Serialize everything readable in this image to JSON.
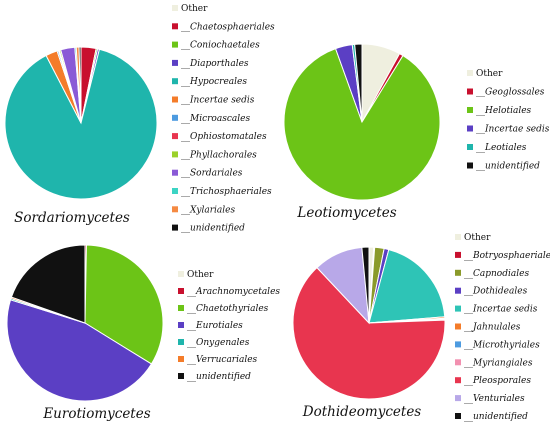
{
  "chart_data": [
    {
      "type": "pie",
      "title": "Sordariomycetes",
      "legend_placement": "right",
      "categories": [
        "Other",
        "__Chaetosphaeriales",
        "__Coniochaetales",
        "__Diaporthales",
        "__Hypocreales",
        "__Incertae sedis",
        "__Microascales",
        "__Ophiostomatales",
        "__Phyllachorales",
        "__Sordariales",
        "__Trichosphaeriales",
        "__Xylariales",
        "__unidentified"
      ],
      "values": [
        0,
        3.2,
        0.3,
        0.4,
        88.5,
        2.5,
        0.3,
        0.2,
        0.3,
        3.0,
        0.3,
        0.6,
        0.4
      ],
      "colors": [
        "#efefdf",
        "#c8102e",
        "#6cc417",
        "#5b3fc4",
        "#1fb5ac",
        "#f47c2a",
        "#4d9be0",
        "#e8354f",
        "#9bd12a",
        "#8a5ad6",
        "#3cd4c4",
        "#f58a42",
        "#111111"
      ]
    },
    {
      "type": "pie",
      "title": "Leotiomycetes",
      "legend_placement": "right",
      "categories": [
        "Other",
        "__Geoglossales",
        "__Helotiales",
        "__Incertae sedis",
        "__Leotiales",
        "__unidentified"
      ],
      "values": [
        8.0,
        0.8,
        85.7,
        3.5,
        0.5,
        1.5
      ],
      "colors": [
        "#efefdf",
        "#c8102e",
        "#6cc417",
        "#5b3fc4",
        "#1fb5ac",
        "#111111"
      ]
    },
    {
      "type": "pie",
      "title": "Eurotiomycetes",
      "legend_placement": "right",
      "categories": [
        "Other",
        "__Arachnomycetales",
        "__Chaetothyriales",
        "__Eurotiales",
        "__Onygenales",
        "__Verrucariales",
        "__unidentified"
      ],
      "values": [
        0,
        0.3,
        33.5,
        46.0,
        0.3,
        0.3,
        19.6
      ],
      "colors": [
        "#efefdf",
        "#c8102e",
        "#6cc417",
        "#5b3fc4",
        "#1fb5ac",
        "#f47c2a",
        "#111111"
      ]
    },
    {
      "type": "pie",
      "title": "Dothideomycetes",
      "legend_placement": "right",
      "categories": [
        "Other",
        "__Botryosphaeriales",
        "__Capnodiales",
        "__Dothideales",
        "__Incertae sedis",
        "__Jahnulales",
        "__Microthyriales",
        "__Myriangiales",
        "__Pleosporales",
        "__Venturiales",
        "__unidentified"
      ],
      "values": [
        1.0,
        0.2,
        2.0,
        1.0,
        19.5,
        0.3,
        0.2,
        0.2,
        63.6,
        10.5,
        1.5
      ],
      "colors": [
        "#efefdf",
        "#c8102e",
        "#8a9a2a",
        "#5b3fc4",
        "#2ec4b6",
        "#f47c2a",
        "#4d9be0",
        "#f290b0",
        "#e8354f",
        "#b8a8e8",
        "#111111"
      ]
    }
  ]
}
